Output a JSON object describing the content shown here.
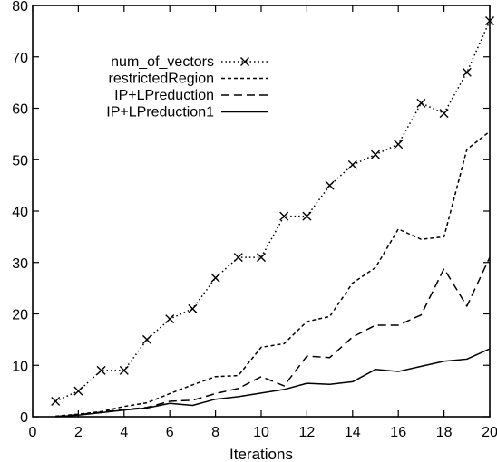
{
  "chart_data": {
    "type": "line",
    "xlabel": "Iterations",
    "ylabel": "",
    "xlim": [
      0,
      20
    ],
    "ylim": [
      0,
      80
    ],
    "x_ticks": [
      0,
      2,
      4,
      6,
      8,
      10,
      12,
      14,
      16,
      18,
      20
    ],
    "y_ticks": [
      0,
      10,
      20,
      30,
      40,
      50,
      60,
      70,
      80
    ],
    "grid": false,
    "legend_position": "top-left",
    "x": [
      1,
      2,
      3,
      4,
      5,
      6,
      7,
      8,
      9,
      10,
      11,
      12,
      13,
      14,
      15,
      16,
      17,
      18,
      19,
      20
    ],
    "series": [
      {
        "name": "num_of_vectors",
        "style": "dotted-cross",
        "color": "#000000",
        "values": [
          3,
          5,
          9,
          9,
          15,
          19,
          21,
          27,
          31,
          31,
          39,
          39,
          45,
          49,
          51,
          53,
          61,
          59,
          67,
          77
        ]
      },
      {
        "name": "restrictedRegion",
        "style": "short-dash",
        "color": "#000000",
        "values": [
          0.1,
          0.5,
          1,
          2,
          2.7,
          4.5,
          6.2,
          7.8,
          8,
          13.5,
          14.2,
          18.5,
          19.5,
          26,
          29,
          36.5,
          34.5,
          35,
          52,
          55.5
        ]
      },
      {
        "name": "IP+LPreduction",
        "style": "long-dash",
        "color": "#000000",
        "values": [
          0.05,
          0.4,
          0.9,
          1.4,
          1.8,
          3,
          3.2,
          4.5,
          5.5,
          7.8,
          6,
          11.8,
          11.5,
          15.5,
          17.8,
          17.8,
          19.8,
          28.8,
          21.5,
          31
        ]
      },
      {
        "name": "IP+LPreduction1",
        "style": "solid",
        "color": "#000000",
        "values": [
          0,
          0.3,
          0.8,
          1.3,
          1.7,
          2.6,
          2.2,
          3.4,
          3.9,
          4.6,
          5.3,
          6.5,
          6.3,
          6.8,
          9.2,
          8.8,
          9.8,
          10.8,
          11.2,
          13.2
        ]
      }
    ]
  }
}
